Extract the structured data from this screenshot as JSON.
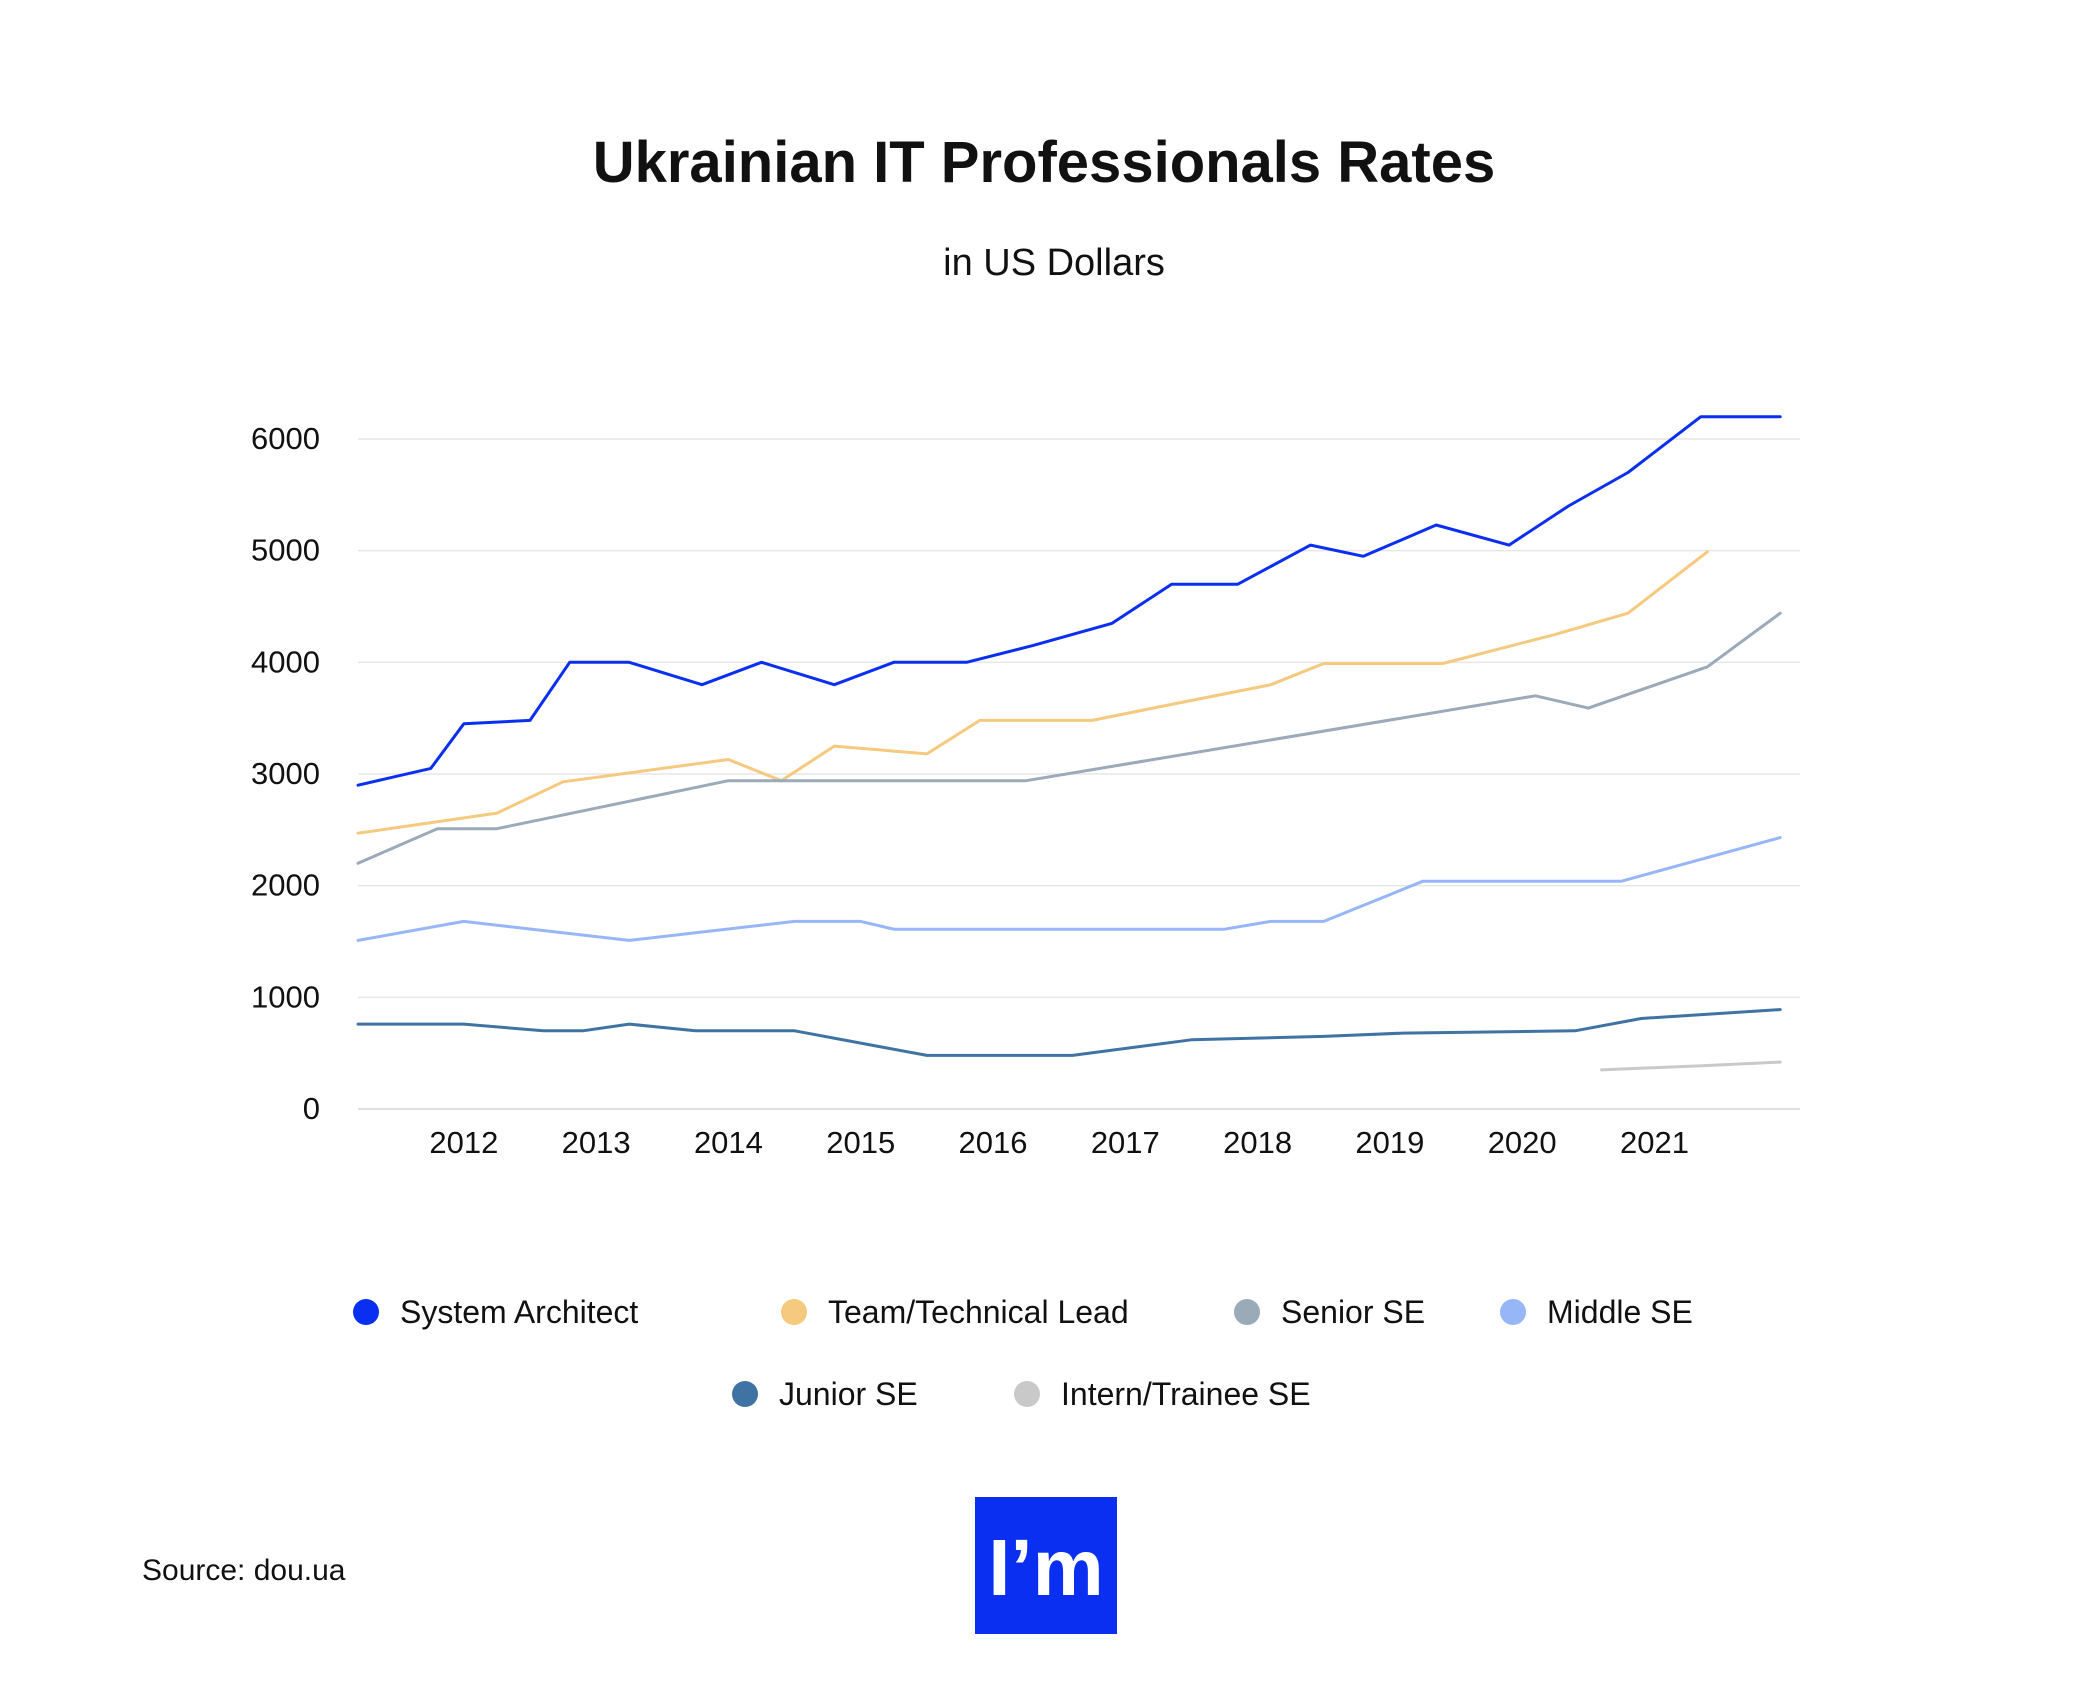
{
  "chart_data": {
    "type": "line",
    "title": "Ukrainian IT Professionals Rates",
    "subtitle": "in US Dollars",
    "xlabel": "",
    "ylabel": "",
    "ylim": [
      0,
      6000
    ],
    "xlim": [
      2011.2,
      2022.1
    ],
    "y_ticks": [
      0,
      1000,
      2000,
      3000,
      4000,
      5000,
      6000
    ],
    "x_ticks": [
      2012,
      2013,
      2014,
      2015,
      2016,
      2017,
      2018,
      2019,
      2020,
      2021
    ],
    "grid": true,
    "legend_position": "bottom",
    "series": [
      {
        "name": "System Architect",
        "color": "#0a2ff0",
        "x": [
          2011.2,
          2011.75,
          2012.0,
          2012.5,
          2012.8,
          2013.25,
          2013.8,
          2014.25,
          2014.8,
          2015.25,
          2015.8,
          2016.3,
          2016.9,
          2017.35,
          2017.85,
          2018.4,
          2018.8,
          2019.35,
          2019.9,
          2020.35,
          2020.8,
          2021.35,
          2021.95
        ],
        "y": [
          2900,
          3050,
          3450,
          3480,
          4000,
          4000,
          3800,
          4000,
          3800,
          4000,
          4000,
          4150,
          4350,
          4700,
          4700,
          5050,
          4950,
          5230,
          5050,
          5400,
          5700,
          6200,
          6200
        ]
      },
      {
        "name": "Team/Technical Lead",
        "color": "#f5c97e",
        "x": [
          2011.2,
          2012.25,
          2012.75,
          2013.5,
          2014.0,
          2014.4,
          2014.8,
          2015.5,
          2015.9,
          2016.75,
          2017.25,
          2018.1,
          2018.5,
          2019.4,
          2020.25,
          2020.8,
          2021.4
        ],
        "y": [
          2470,
          2650,
          2930,
          3050,
          3130,
          2940,
          3250,
          3180,
          3480,
          3480,
          3600,
          3800,
          3990,
          3990,
          4250,
          4440,
          4990
        ]
      },
      {
        "name": "Senior SE",
        "color": "#9aaab8",
        "x": [
          2011.2,
          2011.8,
          2012.25,
          2014.0,
          2016.25,
          2020.1,
          2020.5,
          2021.4,
          2021.95
        ],
        "y": [
          2200,
          2510,
          2510,
          2940,
          2940,
          3700,
          3590,
          3960,
          4440
        ]
      },
      {
        "name": "Middle SE",
        "color": "#97b6f7",
        "x": [
          2011.2,
          2012.0,
          2013.25,
          2014.5,
          2015.0,
          2015.25,
          2016.5,
          2017.75,
          2018.1,
          2018.5,
          2019.25,
          2020.1,
          2020.75,
          2021.95
        ],
        "y": [
          1510,
          1680,
          1510,
          1680,
          1680,
          1610,
          1610,
          1610,
          1680,
          1680,
          2040,
          2040,
          2040,
          2430
        ]
      },
      {
        "name": "Junior SE",
        "color": "#3f73a3",
        "x": [
          2011.2,
          2012.0,
          2012.6,
          2012.9,
          2013.25,
          2013.75,
          2014.5,
          2015.5,
          2016.6,
          2017.5,
          2018.5,
          2019.1,
          2020.4,
          2020.9,
          2021.95
        ],
        "y": [
          760,
          760,
          700,
          700,
          760,
          700,
          700,
          480,
          480,
          620,
          650,
          680,
          700,
          810,
          890
        ]
      },
      {
        "name": "Intern/Trainee SE",
        "color": "#c9c9c9",
        "x": [
          2020.6,
          2021.4,
          2021.95
        ],
        "y": [
          350,
          390,
          420
        ]
      }
    ]
  },
  "source": "Source: dou.ua",
  "logo": {
    "text": "I’m",
    "color": "#0a2ff0"
  }
}
